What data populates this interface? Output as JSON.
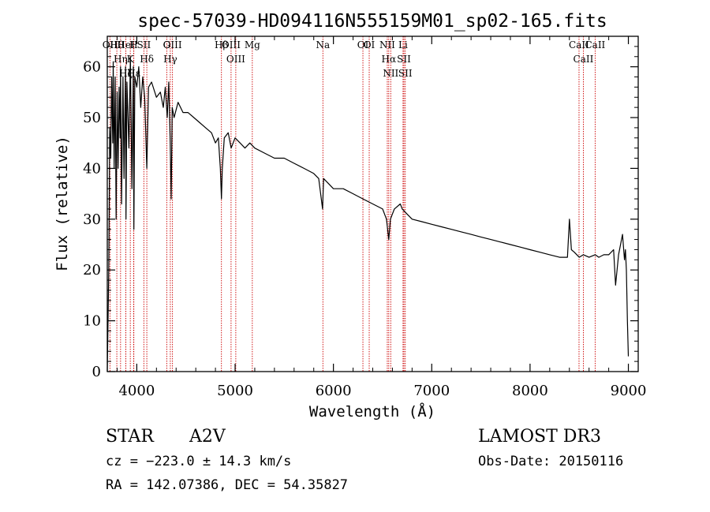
{
  "chart_data": {
    "type": "line",
    "title": "spec-57039-HD094116N555159M01_sp02-165.fits",
    "xlabel": "Wavelength (Å)",
    "ylabel": "Flux (relative)",
    "xlim": [
      3700,
      9100
    ],
    "ylim": [
      0,
      66
    ],
    "xticks": [
      4000,
      5000,
      6000,
      7000,
      8000,
      9000
    ],
    "yticks": [
      0,
      10,
      20,
      30,
      40,
      50,
      60
    ],
    "grid": false,
    "series": [
      {
        "name": "spectrum",
        "x": [
          3700,
          3715,
          3725,
          3735,
          3745,
          3755,
          3760,
          3770,
          3780,
          3790,
          3800,
          3810,
          3820,
          3830,
          3835,
          3845,
          3860,
          3870,
          3885,
          3890,
          3900,
          3920,
          3935,
          3950,
          3965,
          3970,
          3980,
          4000,
          4020,
          4040,
          4060,
          4080,
          4102,
          4120,
          4150,
          4200,
          4240,
          4270,
          4290,
          4310,
          4325,
          4340,
          4350,
          4360,
          4380,
          4420,
          4470,
          4520,
          4580,
          4640,
          4700,
          4760,
          4800,
          4830,
          4850,
          4861,
          4870,
          4890,
          4930,
          4960,
          5000,
          5050,
          5100,
          5150,
          5200,
          5300,
          5400,
          5500,
          5600,
          5700,
          5800,
          5850,
          5890,
          5900,
          5950,
          6000,
          6100,
          6200,
          6300,
          6400,
          6500,
          6540,
          6563,
          6580,
          6620,
          6680,
          6700,
          6750,
          6800,
          6900,
          7000,
          7100,
          7200,
          7300,
          7400,
          7500,
          7600,
          7700,
          7800,
          7900,
          8000,
          8100,
          8200,
          8300,
          8380,
          8400,
          8420,
          8450,
          8500,
          8542,
          8600,
          8662,
          8700,
          8750,
          8800,
          8850,
          8870,
          8900,
          8940,
          8960,
          8970,
          8980,
          8990,
          9000
        ],
        "y": [
          0,
          20,
          48,
          42,
          58,
          45,
          61,
          40,
          58,
          30,
          55,
          40,
          56,
          46,
          60,
          33,
          58,
          38,
          60,
          30,
          57,
          44,
          62,
          36,
          60,
          28,
          58,
          56,
          60,
          52,
          58,
          54,
          40,
          56,
          57,
          54,
          55,
          52,
          56,
          50,
          57,
          45,
          34,
          52,
          50,
          53,
          51,
          51,
          50,
          49,
          48,
          47,
          45,
          46,
          40,
          34,
          40,
          46,
          47,
          44,
          46,
          45,
          44,
          45,
          44,
          43,
          42,
          42,
          41,
          40,
          39,
          38,
          32,
          38,
          37,
          36,
          36,
          35,
          34,
          33,
          32,
          30,
          26,
          30,
          32,
          33,
          32,
          31,
          30,
          29.5,
          29,
          28.5,
          28,
          27.5,
          27,
          26.5,
          26,
          25.5,
          25,
          24.5,
          24,
          23.5,
          23,
          22.5,
          22.5,
          30,
          24,
          23.5,
          22.5,
          23,
          22.5,
          23,
          22.5,
          23,
          23,
          24,
          17,
          23,
          27,
          22,
          24,
          20,
          10,
          3
        ]
      }
    ],
    "line_annotations": [
      {
        "label": "OII",
        "wavelength": 3727
      },
      {
        "label": "Hθ",
        "wavelength": 3797
      },
      {
        "label": "Hη",
        "wavelength": 3835
      },
      {
        "label": "HeI",
        "wavelength": 3889
      },
      {
        "label": "Hζ",
        "wavelength": 3889
      },
      {
        "label": "K",
        "wavelength": 3934
      },
      {
        "label": "H",
        "wavelength": 3968
      },
      {
        "label": "Hε",
        "wavelength": 3970
      },
      {
        "label": "SII",
        "wavelength": 4072
      },
      {
        "label": "Hδ",
        "wavelength": 4102
      },
      {
        "label": "G",
        "wavelength": 4305
      },
      {
        "label": "Hγ",
        "wavelength": 4341
      },
      {
        "label": "OIII",
        "wavelength": 4363
      },
      {
        "label": "Hβ",
        "wavelength": 4861
      },
      {
        "label": "OIII",
        "wavelength": 4959
      },
      {
        "label": "OIII",
        "wavelength": 5007
      },
      {
        "label": "Mg",
        "wavelength": 5175
      },
      {
        "label": "Na",
        "wavelength": 5893
      },
      {
        "label": "OI",
        "wavelength": 6300
      },
      {
        "label": "OI",
        "wavelength": 6364
      },
      {
        "label": "NII",
        "wavelength": 6548
      },
      {
        "label": "Hα",
        "wavelength": 6563
      },
      {
        "label": "NII",
        "wavelength": 6583
      },
      {
        "label": "Li",
        "wavelength": 6708
      },
      {
        "label": "SII",
        "wavelength": 6717
      },
      {
        "label": "SII",
        "wavelength": 6731
      },
      {
        "label": "CaII",
        "wavelength": 8498
      },
      {
        "label": "CaII",
        "wavelength": 8542
      },
      {
        "label": "CaII",
        "wavelength": 8662
      }
    ]
  },
  "info": {
    "object_class": "STAR",
    "subclass": "A2V",
    "survey": "LAMOST DR3",
    "cz": "cz = −223.0 ± 14.3 km/s",
    "obs_date": "Obs-Date: 20150116",
    "coords": "RA = 142.07386, DEC =  54.35827"
  },
  "colors": {
    "spectrum": "#000000",
    "line_marker": "#cc0000",
    "axes": "#000000",
    "background": "#ffffff"
  }
}
